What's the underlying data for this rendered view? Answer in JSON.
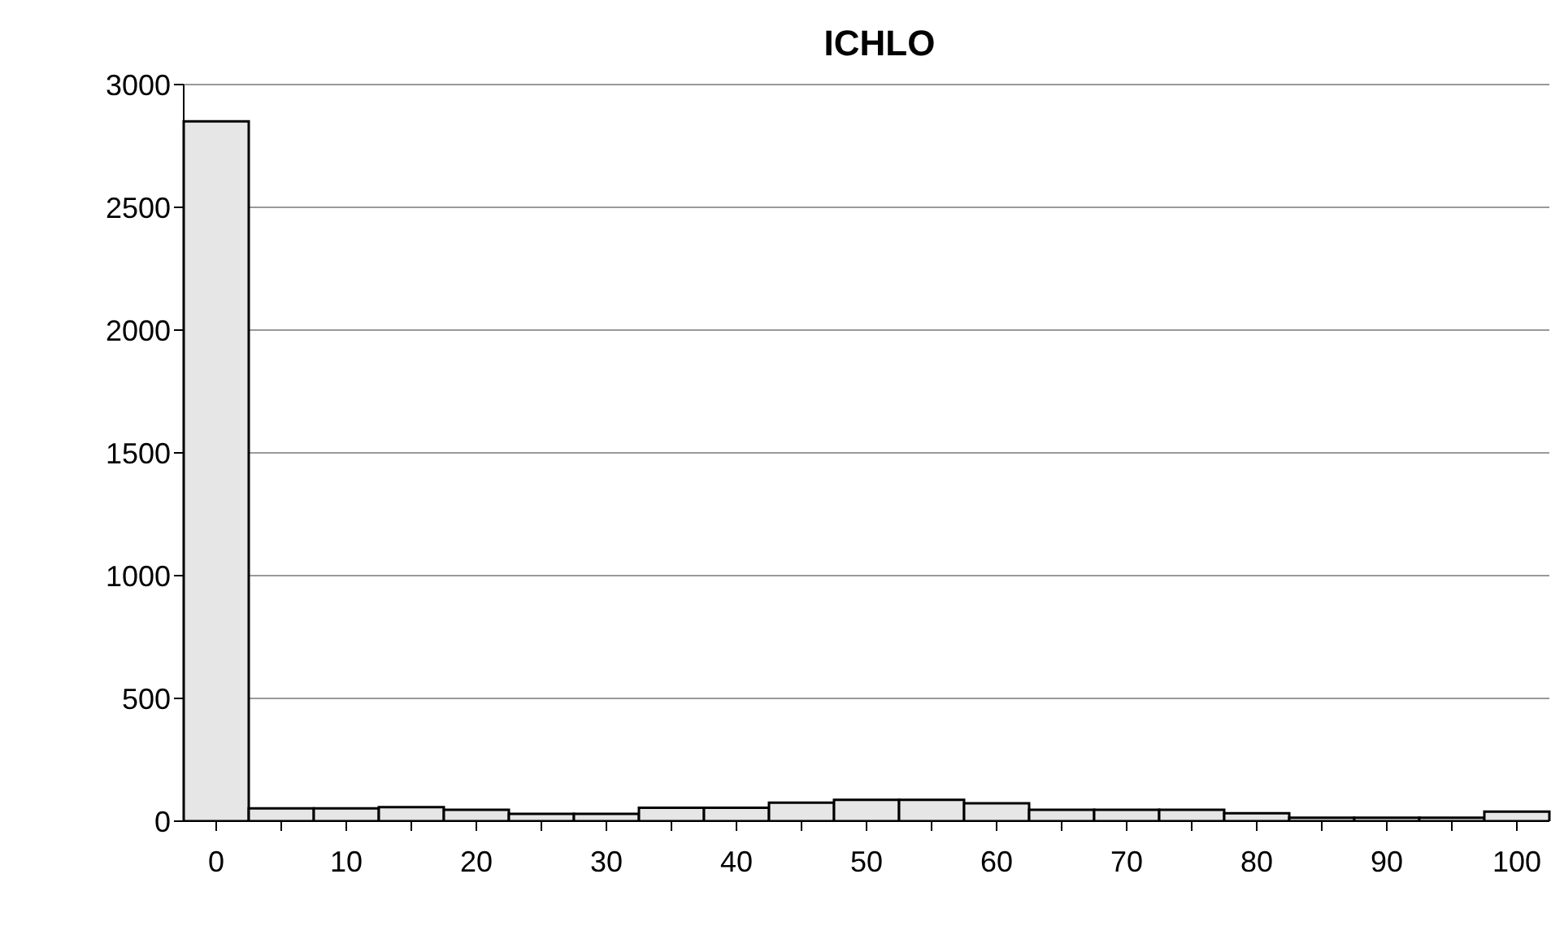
{
  "chart_data": {
    "type": "bar",
    "title": "ICHLO",
    "categories": [
      "0",
      null,
      "10",
      null,
      "20",
      null,
      "30",
      null,
      "40",
      null,
      "50",
      null,
      "60",
      null,
      "70",
      null,
      "80",
      null,
      "90",
      null,
      "100"
    ],
    "values": [
      2850,
      52,
      52,
      57,
      46,
      30,
      30,
      55,
      55,
      75,
      87,
      87,
      73,
      46,
      46,
      46,
      32,
      14,
      14,
      14,
      39
    ],
    "color": "#e6e6e6",
    "ylim": [
      0,
      3000
    ],
    "yticks": [
      0,
      500,
      1000,
      1500,
      2000,
      2500,
      3000
    ],
    "grid": "y"
  }
}
